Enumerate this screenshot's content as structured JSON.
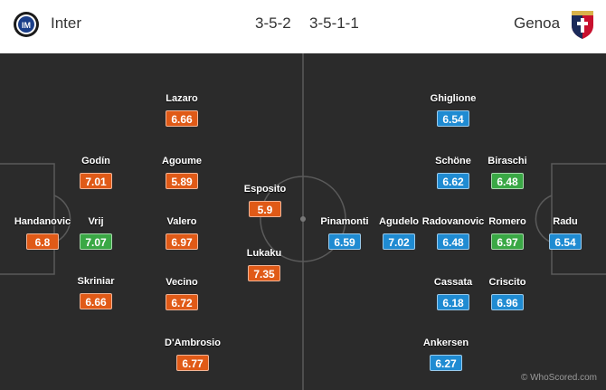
{
  "colors": {
    "pitch": "#2b2b2b",
    "lines": "#5a5a5a",
    "rating_orange": "#e05a17",
    "rating_green": "#3aa845",
    "rating_blue": "#1f8bd2"
  },
  "header": {
    "home_team": "Inter",
    "away_team": "Genoa",
    "home_formation": "3-5-2",
    "away_formation": "3-5-1-1",
    "home_logo_icon": "inter-crest-icon",
    "away_logo_icon": "genoa-crest-icon"
  },
  "home_players": [
    {
      "name": "Handanovic",
      "rating": "6.8",
      "color": "orange"
    },
    {
      "name": "Vrij",
      "rating": "7.07",
      "color": "green"
    },
    {
      "name": "Godín",
      "rating": "7.01",
      "color": "orange"
    },
    {
      "name": "Skriniar",
      "rating": "6.66",
      "color": "orange"
    },
    {
      "name": "Lazaro",
      "rating": "6.66",
      "color": "orange"
    },
    {
      "name": "Agoume",
      "rating": "5.89",
      "color": "orange"
    },
    {
      "name": "Valero",
      "rating": "6.97",
      "color": "orange"
    },
    {
      "name": "Vecino",
      "rating": "6.72",
      "color": "orange"
    },
    {
      "name": "D'Ambrosio",
      "rating": "6.77",
      "color": "orange"
    },
    {
      "name": "Esposito",
      "rating": "5.9",
      "color": "orange"
    },
    {
      "name": "Lukaku",
      "rating": "7.35",
      "color": "orange"
    }
  ],
  "away_players": [
    {
      "name": "Radu",
      "rating": "6.54",
      "color": "blue"
    },
    {
      "name": "Biraschi",
      "rating": "6.48",
      "color": "green"
    },
    {
      "name": "Romero",
      "rating": "6.97",
      "color": "green"
    },
    {
      "name": "Criscito",
      "rating": "6.96",
      "color": "blue"
    },
    {
      "name": "Ghiglione",
      "rating": "6.54",
      "color": "blue"
    },
    {
      "name": "Schöne",
      "rating": "6.62",
      "color": "blue"
    },
    {
      "name": "Radovanovic",
      "rating": "6.48",
      "color": "blue"
    },
    {
      "name": "Cassata",
      "rating": "6.18",
      "color": "blue"
    },
    {
      "name": "Ankersen",
      "rating": "6.27",
      "color": "blue"
    },
    {
      "name": "Agudelo",
      "rating": "7.02",
      "color": "blue"
    },
    {
      "name": "Pinamonti",
      "rating": "6.59",
      "color": "blue"
    }
  ],
  "watermark": "© WhoScored.com"
}
